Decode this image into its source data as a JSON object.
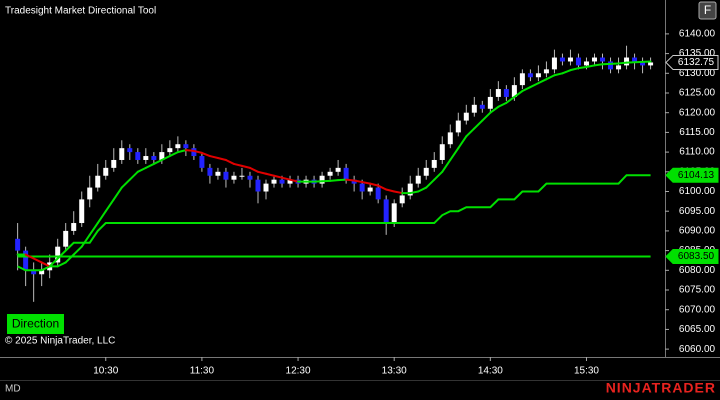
{
  "chart_data": {
    "type": "candlestick",
    "title": "Tradesight Market Directional Tool",
    "corner_button": "F",
    "button": "Direction",
    "copyright": "© 2025 NinjaTrader, LLC",
    "status": "MD",
    "logo": "NINJATRADER",
    "x": [
      575,
      580,
      585,
      590,
      595,
      600,
      605,
      610,
      615,
      620,
      625,
      630,
      635,
      640,
      645,
      650,
      655,
      660,
      665,
      670,
      675,
      680,
      685,
      690,
      695,
      700,
      705,
      710,
      715,
      720,
      725,
      730,
      735,
      740,
      745,
      750,
      755,
      760,
      765,
      770,
      775,
      780,
      785,
      790,
      795,
      800,
      805,
      810,
      815,
      820,
      825,
      830,
      835,
      840,
      845,
      850,
      855,
      860,
      865,
      870,
      875,
      880,
      885,
      890,
      895,
      900,
      905,
      910,
      915,
      920,
      925,
      930,
      935,
      940,
      945,
      950,
      955,
      960,
      965,
      970
    ],
    "open": [
      6088,
      6085,
      6080,
      6079,
      6080,
      6082,
      6086,
      6090,
      6092,
      6098,
      6101,
      6104,
      6106,
      6108,
      6111,
      6110,
      6108,
      6109,
      6108,
      6110,
      6111,
      6112,
      6111,
      6109,
      6106,
      6104,
      6105,
      6103,
      6104,
      6104,
      6103,
      6100,
      6102,
      6103,
      6102,
      6103,
      6102,
      6103,
      6102,
      6104,
      6105,
      6106,
      6103,
      6102,
      6100,
      6101,
      6098,
      6092,
      6097,
      6099,
      6102,
      6104,
      6106,
      6108,
      6112,
      6115,
      6118,
      6120,
      6122,
      6121,
      6124,
      6126,
      6124,
      6127,
      6130,
      6129,
      6130,
      6131,
      6134,
      6133,
      6134,
      6132,
      6133,
      6134,
      6133,
      6131,
      6132,
      6134,
      6133,
      6132
    ],
    "high": [
      6092,
      6086,
      6082,
      6082,
      6084,
      6088,
      6092,
      6095,
      6100,
      6104,
      6107,
      6108,
      6111,
      6113,
      6112,
      6111,
      6111,
      6110,
      6112,
      6113,
      6114,
      6113,
      6112,
      6110,
      6107,
      6106,
      6106,
      6105,
      6106,
      6105,
      6104,
      6103,
      6104,
      6104,
      6104,
      6104,
      6104,
      6104,
      6105,
      6106,
      6108,
      6107,
      6104,
      6103,
      6102,
      6102,
      6099,
      6098,
      6101,
      6104,
      6106,
      6108,
      6110,
      6114,
      6117,
      6120,
      6122,
      6124,
      6123,
      6126,
      6128,
      6127,
      6129,
      6131,
      6131,
      6132,
      6133,
      6136,
      6135,
      6136,
      6135,
      6134,
      6135,
      6135,
      6134,
      6134,
      6137,
      6135,
      6134,
      6134
    ],
    "low": [
      6080,
      6076,
      6072,
      6076,
      6078,
      6081,
      6085,
      6089,
      6091,
      6096,
      6100,
      6103,
      6105,
      6107,
      6108,
      6107,
      6107,
      6107,
      6107,
      6109,
      6110,
      6109,
      6108,
      6105,
      6102,
      6103,
      6101,
      6102,
      6103,
      6101,
      6097,
      6098,
      6101,
      6101,
      6101,
      6101,
      6101,
      6101,
      6101,
      6103,
      6104,
      6102,
      6100,
      6098,
      6099,
      6097,
      6089,
      6091,
      6096,
      6098,
      6101,
      6103,
      6105,
      6107,
      6111,
      6114,
      6117,
      6119,
      6120,
      6120,
      6123,
      6123,
      6123,
      6126,
      6128,
      6128,
      6129,
      6130,
      6132,
      6132,
      6131,
      6131,
      6132,
      6131,
      6130,
      6130,
      6131,
      6131,
      6130,
      6131
    ],
    "close": [
      6085,
      6080,
      6079,
      6080,
      6082,
      6086,
      6090,
      6092,
      6098,
      6101,
      6104,
      6106,
      6108,
      6111,
      6110,
      6108,
      6109,
      6108,
      6110,
      6111,
      6112,
      6111,
      6109,
      6106,
      6104,
      6105,
      6103,
      6104,
      6104,
      6103,
      6100,
      6102,
      6103,
      6102,
      6103,
      6102,
      6103,
      6102,
      6104,
      6105,
      6106,
      6103,
      6102,
      6100,
      6101,
      6098,
      6092,
      6097,
      6099,
      6102,
      6104,
      6106,
      6108,
      6112,
      6115,
      6118,
      6120,
      6122,
      6121,
      6124,
      6126,
      6124,
      6127,
      6130,
      6129,
      6130,
      6131,
      6134,
      6133,
      6134,
      6132,
      6133,
      6134,
      6133,
      6131,
      6132,
      6134,
      6133,
      6132,
      6132.75
    ],
    "ma": [
      6084,
      6084,
      6083,
      6082,
      6081,
      6081,
      6082,
      6084,
      6086,
      6089,
      6092,
      6095,
      6098,
      6101,
      6103,
      6105,
      6106,
      6107,
      6108,
      6109,
      6110,
      6110.5,
      6110.3,
      6109.8,
      6109,
      6108.5,
      6108,
      6107,
      6106.5,
      6106,
      6105,
      6104.5,
      6104,
      6103.5,
      6103,
      6102.5,
      6102.5,
      6102.5,
      6102.6,
      6102.7,
      6102.9,
      6103,
      6102.8,
      6102.4,
      6102,
      6101.5,
      6100.5,
      6100,
      6099.6,
      6099.6,
      6100,
      6101,
      6103,
      6105,
      6108,
      6111,
      6114,
      6116,
      6118,
      6120,
      6121.5,
      6122.5,
      6124,
      6125.5,
      6126.5,
      6127.5,
      6128.5,
      6129.5,
      6130,
      6130.8,
      6131.3,
      6131.6,
      6132,
      6132.3,
      6132.4,
      6132.5,
      6132.7,
      6132.8,
      6132.9,
      6133
    ],
    "stop": [
      6081,
      6080,
      6080,
      6080,
      6081,
      6083,
      6085,
      6087,
      6087,
      6087,
      6090,
      6092,
      6092,
      6092,
      6092,
      6092,
      6092,
      6092,
      6092,
      6092,
      6092,
      6092,
      6092,
      6092,
      6092,
      6092,
      6092,
      6092,
      6092,
      6092,
      6092,
      6092,
      6092,
      6092,
      6092,
      6092,
      6092,
      6092,
      6092,
      6092,
      6092,
      6092,
      6092,
      6092,
      6092,
      6092,
      6092,
      6092,
      6092,
      6092,
      6092,
      6092,
      6092,
      6094,
      6095,
      6095,
      6096,
      6096,
      6096,
      6096,
      6098,
      6098,
      6098,
      6100,
      6100,
      6100,
      6102,
      6102,
      6102,
      6102,
      6102,
      6102,
      6102,
      6102,
      6102,
      6102,
      6104.13,
      6104.13,
      6104.13,
      6104.13
    ],
    "level": {
      "value": 6083.5,
      "label": "6083.50"
    },
    "up_color": "#ffffff",
    "down_color": "#2323ff",
    "ma_up_color": "#00e000",
    "ma_down_color": "#e00000",
    "stop_color": "#00e000",
    "level_color": "#00e000",
    "xlim": [
      564,
      979
    ],
    "ylim": [
      6058,
      6148.6
    ],
    "xticks": [
      {
        "value": 630,
        "label": "10:30"
      },
      {
        "value": 690,
        "label": "11:30"
      },
      {
        "value": 750,
        "label": "12:30"
      },
      {
        "value": 810,
        "label": "13:30"
      },
      {
        "value": 870,
        "label": "14:30"
      },
      {
        "value": 930,
        "label": "15:30"
      }
    ],
    "yticks": [
      {
        "value": 6060,
        "label": "6060.00"
      },
      {
        "value": 6065,
        "label": "6065.00"
      },
      {
        "value": 6070,
        "label": "6070.00"
      },
      {
        "value": 6075,
        "label": "6075.00"
      },
      {
        "value": 6080,
        "label": "6080.00"
      },
      {
        "value": 6085,
        "label": "6085.00"
      },
      {
        "value": 6090,
        "label": "6090.00"
      },
      {
        "value": 6095,
        "label": "6095.00"
      },
      {
        "value": 6100,
        "label": "6100.00"
      },
      {
        "value": 6105,
        "label": "6105.00"
      },
      {
        "value": 6110,
        "label": "6110.00"
      },
      {
        "value": 6115,
        "label": "6115.00"
      },
      {
        "value": 6120,
        "label": "6120.00"
      },
      {
        "value": 6125,
        "label": "6125.00"
      },
      {
        "value": 6130,
        "label": "6130.00"
      },
      {
        "value": 6135,
        "label": "6135.00"
      },
      {
        "value": 6140,
        "label": "6140.00"
      }
    ],
    "grid": false
  }
}
